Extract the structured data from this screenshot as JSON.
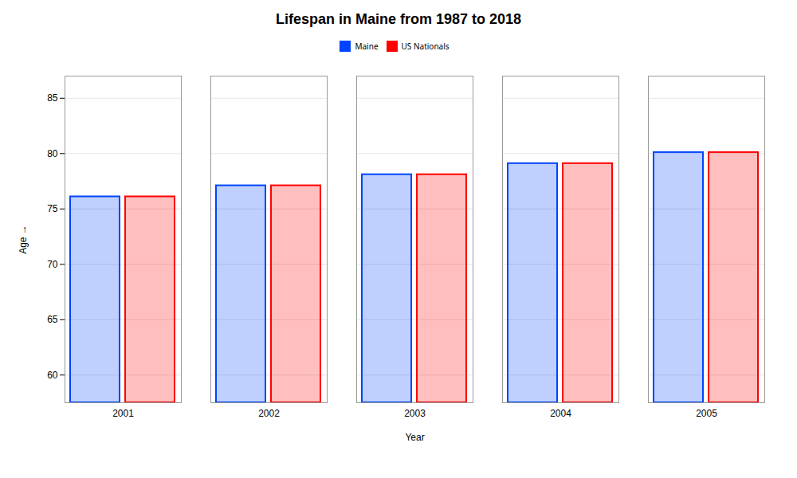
{
  "chart_data": {
    "type": "bar",
    "title": "Lifespan in Maine from 1987 to 2018",
    "xlabel": "Year",
    "ylabel": "Age",
    "categories": [
      "2001",
      "2002",
      "2003",
      "2004",
      "2005"
    ],
    "series": [
      {
        "name": "Maine",
        "color": "#0044ff",
        "values": [
          76.1,
          77.1,
          78.1,
          79.1,
          80.1
        ]
      },
      {
        "name": "US Nationals",
        "color": "#ff0000",
        "values": [
          76.1,
          77.1,
          78.1,
          79.1,
          80.1
        ]
      }
    ],
    "ylim": [
      57.5,
      87
    ],
    "yticks": [
      60,
      65,
      70,
      75,
      80,
      85
    ],
    "grid": true,
    "legend": "top"
  }
}
